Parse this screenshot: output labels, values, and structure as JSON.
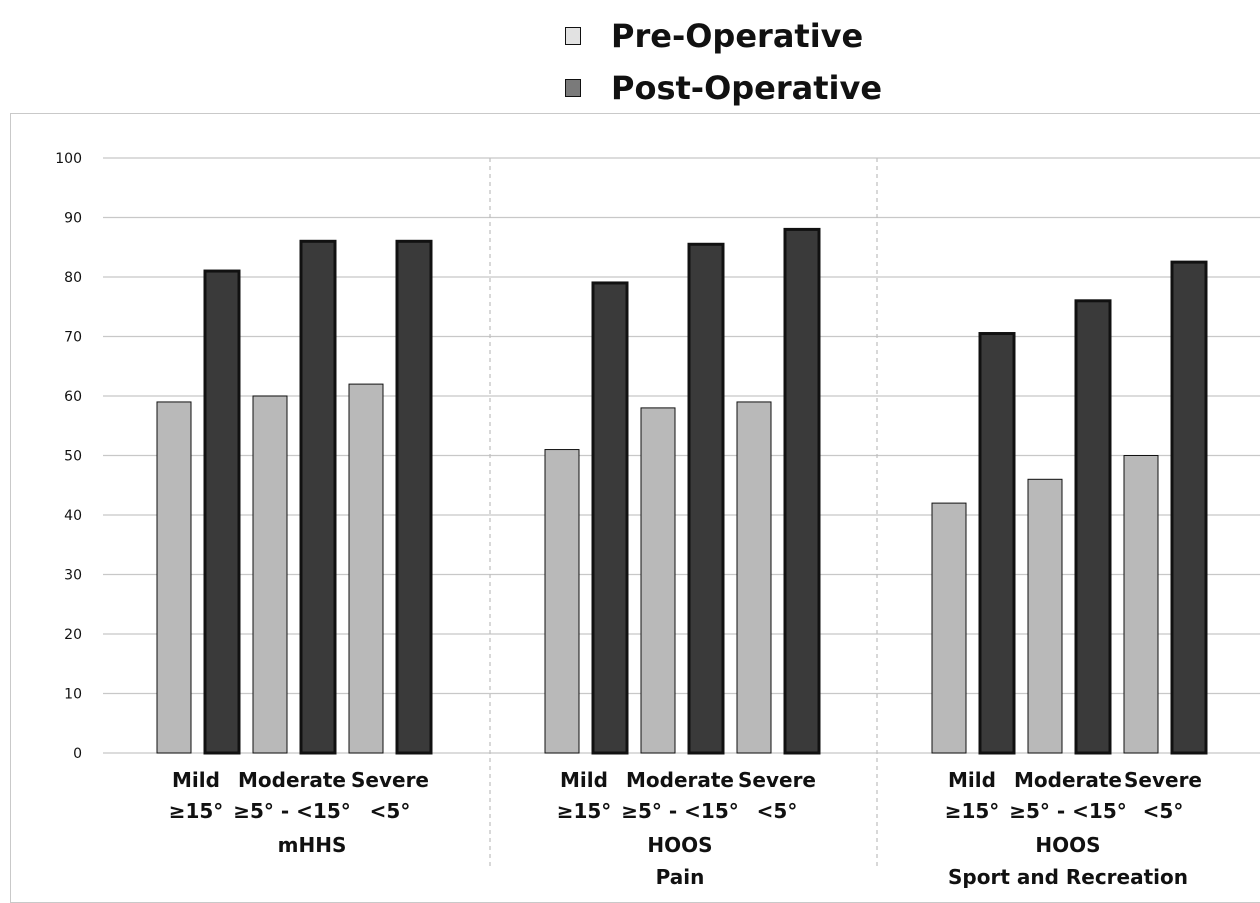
{
  "legend": {
    "pre_label": "Pre-Operative",
    "post_label": "Post-Operative"
  },
  "colors": {
    "pre": "#b9b9b9",
    "post": "#3a3a3a",
    "bar_border": "#111111",
    "grid": "#c8c8c8",
    "separator": "#bdbdbd"
  },
  "chart_data": {
    "type": "bar",
    "ylim": [
      0,
      100
    ],
    "yticks": [
      0,
      10,
      20,
      30,
      40,
      50,
      60,
      70,
      80,
      90,
      100
    ],
    "grid": true,
    "legend_position": "top",
    "series": [
      {
        "name": "Pre-Operative",
        "color": "#b9b9b9"
      },
      {
        "name": "Post-Operative",
        "color": "#3a3a3a"
      }
    ],
    "groups": [
      {
        "labels": [
          "mHHS"
        ],
        "categories": [
          {
            "label": "Mild",
            "sublabel": "≥15°",
            "values": [
              59,
              81
            ]
          },
          {
            "label": "Moderate",
            "sublabel": "≥5° - <15°",
            "values": [
              60,
              86
            ]
          },
          {
            "label": "Severe",
            "sublabel": "<5°",
            "values": [
              62,
              86
            ]
          }
        ]
      },
      {
        "labels": [
          "HOOS",
          "Pain"
        ],
        "categories": [
          {
            "label": "Mild",
            "sublabel": "≥15°",
            "values": [
              51,
              79
            ]
          },
          {
            "label": "Moderate",
            "sublabel": "≥5° - <15°",
            "values": [
              58,
              85.5
            ]
          },
          {
            "label": "Severe",
            "sublabel": "<5°",
            "values": [
              59,
              88
            ]
          }
        ]
      },
      {
        "labels": [
          "HOOS",
          "Sport and Recreation"
        ],
        "categories": [
          {
            "label": "Mild",
            "sublabel": "≥15°",
            "values": [
              42,
              70.5
            ]
          },
          {
            "label": "Moderate",
            "sublabel": "≥5° - <15°",
            "values": [
              46,
              76
            ]
          },
          {
            "label": "Severe",
            "sublabel": "<5°",
            "values": [
              50,
              82.5
            ]
          }
        ]
      }
    ]
  }
}
